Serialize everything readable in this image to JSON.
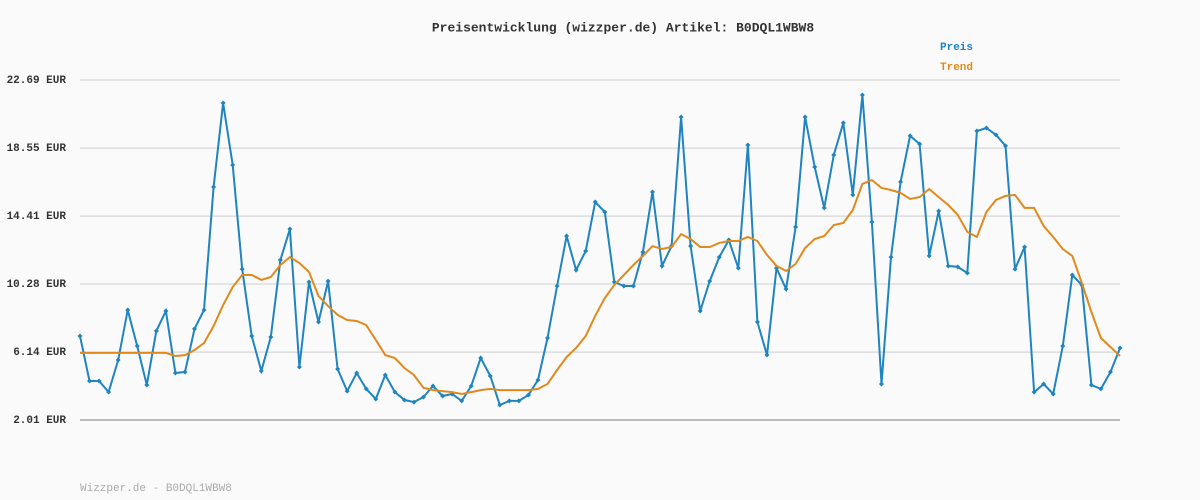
{
  "chart_data": {
    "type": "line",
    "title": "Preisentwicklung (wizzper.de) Artikel: B0DQL1WBW8",
    "footer": "Wizzper.de - B0DQL1WBW8",
    "ylim": [
      2.01,
      22.69
    ],
    "yticks": [
      {
        "value": 2.01,
        "label": "2.01 EUR"
      },
      {
        "value": 6.14,
        "label": "6.14 EUR"
      },
      {
        "value": 10.28,
        "label": "10.28 EUR"
      },
      {
        "value": 14.41,
        "label": "14.41 EUR"
      },
      {
        "value": 18.55,
        "label": "18.55 EUR"
      },
      {
        "value": 22.69,
        "label": "22.69 EUR"
      }
    ],
    "grid": true,
    "legend": "top-right",
    "series": [
      {
        "name": "Preis",
        "color": "#1f84c0",
        "markers": true,
        "values": [
          7.12,
          4.38,
          4.38,
          3.71,
          5.66,
          8.7,
          6.51,
          4.14,
          7.42,
          8.64,
          4.87,
          4.93,
          7.55,
          8.7,
          16.18,
          21.29,
          17.52,
          11.19,
          7.12,
          4.99,
          7.06,
          11.74,
          13.63,
          5.23,
          10.4,
          7.97,
          10.46,
          5.11,
          3.77,
          4.87,
          3.9,
          3.29,
          4.75,
          3.71,
          3.23,
          3.1,
          3.41,
          4.08,
          3.47,
          3.59,
          3.17,
          4.08,
          5.78,
          4.69,
          2.92,
          3.17,
          3.17,
          3.53,
          4.44,
          7.0,
          10.16,
          13.2,
          11.13,
          12.29,
          15.27,
          14.66,
          10.4,
          10.16,
          10.16,
          12.23,
          15.88,
          11.38,
          12.59,
          20.44,
          12.59,
          8.64,
          10.46,
          11.92,
          12.96,
          11.25,
          18.74,
          7.97,
          5.96,
          11.25,
          9.98,
          13.75,
          20.44,
          17.4,
          14.91,
          18.13,
          20.08,
          15.7,
          21.78,
          14.05,
          4.2,
          11.92,
          16.49,
          19.29,
          18.8,
          11.99,
          14.72,
          11.38,
          11.32,
          10.95,
          19.59,
          19.77,
          19.35,
          18.68,
          11.19,
          12.53,
          3.71,
          4.2,
          3.59,
          6.51,
          10.83,
          10.22,
          4.14,
          3.9,
          4.93,
          6.39
        ]
      },
      {
        "name": "Trend",
        "color": "#e08a1e",
        "markers": false,
        "values": [
          6.09,
          6.09,
          6.09,
          6.09,
          6.09,
          6.09,
          6.09,
          6.09,
          6.09,
          6.09,
          5.9,
          5.96,
          6.27,
          6.69,
          7.73,
          9.0,
          10.1,
          10.83,
          10.83,
          10.53,
          10.71,
          11.44,
          11.92,
          11.56,
          11.01,
          9.55,
          8.94,
          8.4,
          8.09,
          8.03,
          7.79,
          6.88,
          5.96,
          5.78,
          5.17,
          4.75,
          3.96,
          3.83,
          3.77,
          3.71,
          3.59,
          3.71,
          3.83,
          3.9,
          3.83,
          3.83,
          3.83,
          3.83,
          3.9,
          4.2,
          5.05,
          5.84,
          6.39,
          7.12,
          8.34,
          9.43,
          10.22,
          10.83,
          11.44,
          11.99,
          12.59,
          12.41,
          12.53,
          13.32,
          13.02,
          12.53,
          12.53,
          12.78,
          12.9,
          12.9,
          13.14,
          12.9,
          12.05,
          11.38,
          11.07,
          11.5,
          12.47,
          13.02,
          13.2,
          13.87,
          13.99,
          14.78,
          16.37,
          16.61,
          16.12,
          16.0,
          15.82,
          15.45,
          15.57,
          16.06,
          15.57,
          15.09,
          14.48,
          13.45,
          13.14,
          14.66,
          15.39,
          15.64,
          15.7,
          14.91,
          14.91,
          13.81,
          13.14,
          12.41,
          11.99,
          10.34,
          8.58,
          7.0,
          6.45,
          5.9
        ]
      }
    ]
  }
}
